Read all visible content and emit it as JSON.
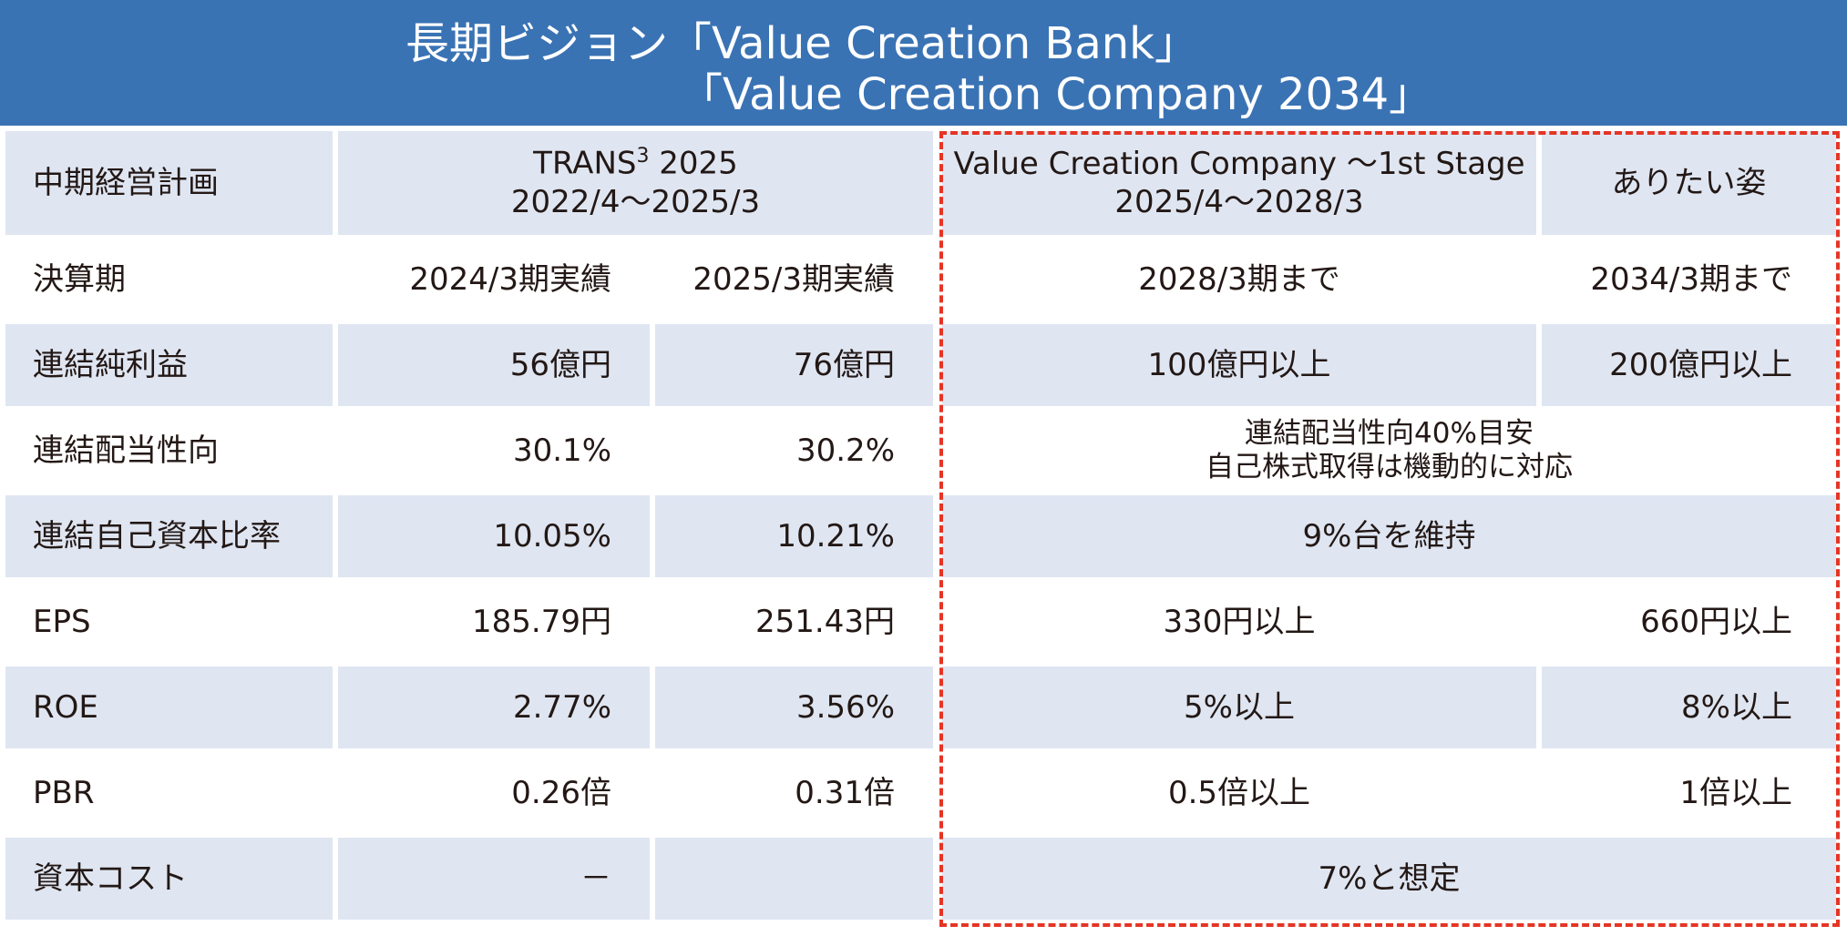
{
  "title": {
    "line1": "長期ビジョン「Value Creation Bank」",
    "line2": "「Value Creation Company 2034」"
  },
  "header": {
    "plan_label": "中期経営計画",
    "trans_name": "TRANS",
    "trans_sup": "3",
    "trans_year": " 2025",
    "trans_period": "2022/4～2025/3",
    "vcc_name": "Value Creation Company ～1st Stage",
    "vcc_period": "2025/4～2028/3",
    "ideal": "ありたい姿"
  },
  "rows": [
    {
      "label": "決算期",
      "c1": "2024/3期実績",
      "c2": "2025/3期実績",
      "c3": "2028/3期まで",
      "c4": "2034/3期まで"
    },
    {
      "label": "連結純利益",
      "c1": "56億円",
      "c2": "76億円",
      "c3": "100億円以上",
      "c4": "200億円以上"
    },
    {
      "label": "連結配当性向",
      "c1": "30.1%",
      "c2": "30.2%",
      "merged_line1": "連結配当性向40%目安",
      "merged_line2": "自己株式取得は機動的に対応"
    },
    {
      "label": "連結自己資本比率",
      "c1": "10.05%",
      "c2": "10.21%",
      "merged": "9%台を維持"
    },
    {
      "label": "EPS",
      "c1": "185.79円",
      "c2": "251.43円",
      "c3": "330円以上",
      "c4": "660円以上"
    },
    {
      "label": "ROE",
      "c1": "2.77%",
      "c2": "3.56%",
      "c3": "5%以上",
      "c4": "8%以上"
    },
    {
      "label": "PBR",
      "c1": "0.26倍",
      "c2": "0.31倍",
      "c3": "0.5倍以上",
      "c4": "1倍以上"
    },
    {
      "label": "資本コスト",
      "c1": "－",
      "c2": "",
      "merged": "7%と想定"
    }
  ],
  "colors": {
    "banner": "#3a73b4",
    "shade": "#dfe6f2",
    "dashed_border": "#e53525"
  }
}
